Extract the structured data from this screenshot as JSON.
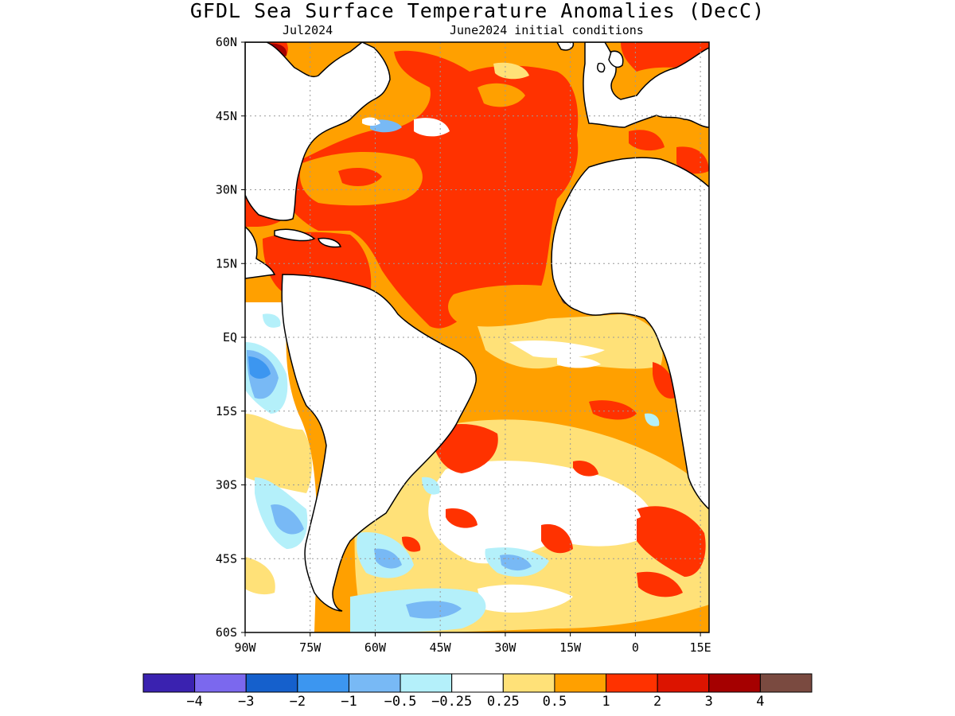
{
  "title": "GFDL Sea Surface Temperature Anomalies (DecC)",
  "subtitle_left": "Jul2024",
  "subtitle_right": "June2024 initial conditions",
  "lat_labels": [
    "60N",
    "45N",
    "30N",
    "15N",
    "EQ",
    "15S",
    "30S",
    "45S",
    "60S"
  ],
  "lon_labels": [
    "90W",
    "75W",
    "60W",
    "45W",
    "30W",
    "15W",
    "0",
    "15E"
  ],
  "colorbar": {
    "colors": [
      "#3a22b0",
      "#7b68ee",
      "#1560cc",
      "#3c96f0",
      "#78b9f5",
      "#b4f0fa",
      "#ffffff",
      "#ffe178",
      "#ffa000",
      "#ff3200",
      "#dc1400",
      "#a50000",
      "#7a4a40"
    ],
    "labels": [
      "-4",
      "-3",
      "-2",
      "-1",
      "-0.5",
      "-0.25",
      "0.25",
      "0.5",
      "1",
      "2",
      "3",
      "4"
    ]
  },
  "map": {
    "lon_range": [
      -90,
      17
    ],
    "lat_range": [
      -60,
      60
    ],
    "land_color": "#ffffff",
    "coast_color": "#000000"
  }
}
